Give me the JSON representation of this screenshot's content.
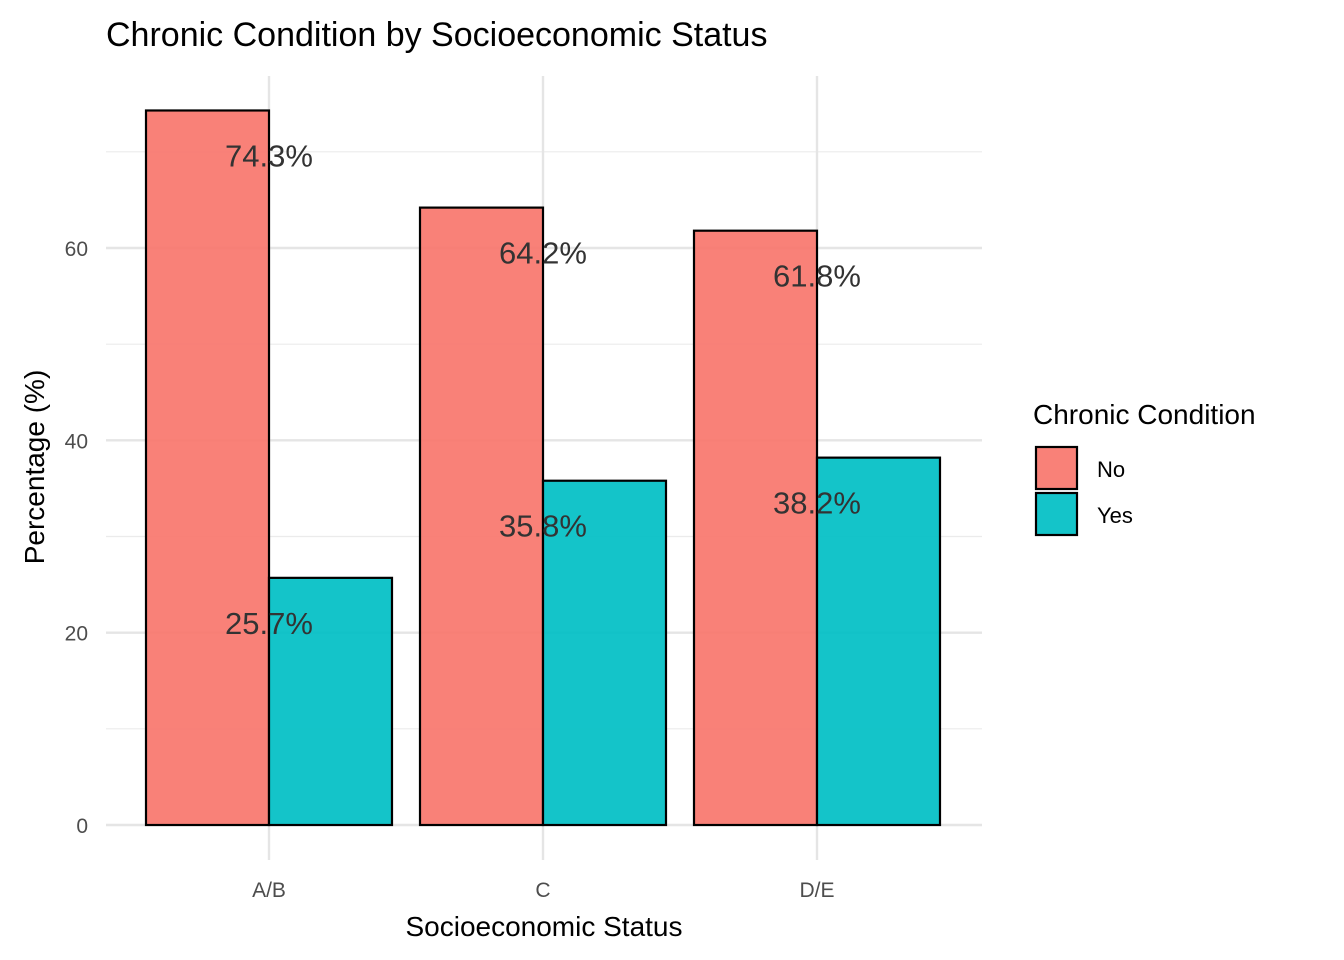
{
  "chart_data": {
    "type": "bar",
    "title": "Chronic Condition by Socioeconomic Status",
    "xlabel": "Socioeconomic Status",
    "ylabel": "Percentage (%)",
    "categories": [
      "A/B",
      "C",
      "D/E"
    ],
    "series": [
      {
        "name": "No",
        "color": "#F8766D",
        "values": [
          74.3,
          64.2,
          61.8
        ],
        "labels": [
          "74.3%",
          "64.2%",
          "61.8%"
        ]
      },
      {
        "name": "Yes",
        "color": "#00BFC4",
        "values": [
          25.7,
          35.8,
          38.2
        ],
        "labels": [
          "25.7%",
          "35.8%",
          "38.2%"
        ]
      }
    ],
    "ylim": [
      0,
      77
    ],
    "yticks": [
      0,
      20,
      40,
      60
    ],
    "ytick_labels": [
      "0",
      "20",
      "40",
      "60"
    ],
    "grid": true,
    "legend": {
      "title": "Chronic Condition",
      "position": "right",
      "entries": [
        "No",
        "Yes"
      ]
    },
    "position": "dodge"
  }
}
